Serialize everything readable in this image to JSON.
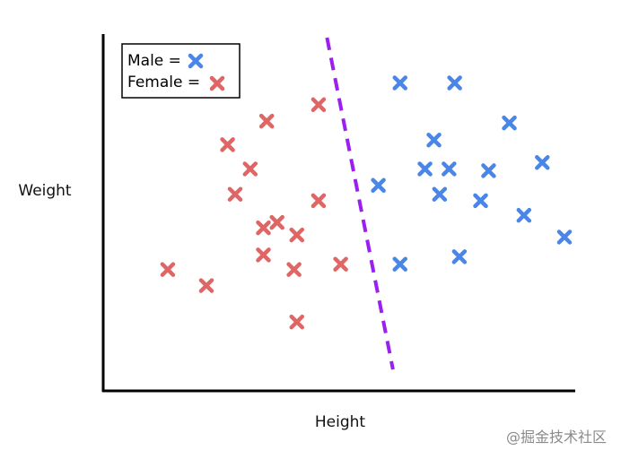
{
  "chart_data": {
    "type": "scatter",
    "xlabel": "Height",
    "ylabel": "Weight",
    "xlim": [
      0,
      100
    ],
    "ylim": [
      0,
      100
    ],
    "grid": false,
    "legend_position": "top-left",
    "axis_ticks": false,
    "series": [
      {
        "name": "Female",
        "marker": "x",
        "color": "#e06666",
        "points": [
          {
            "x": 13.7,
            "y": 34.0
          },
          {
            "x": 21.9,
            "y": 29.5
          },
          {
            "x": 26.4,
            "y": 69.0
          },
          {
            "x": 28.0,
            "y": 55.1
          },
          {
            "x": 31.2,
            "y": 62.2
          },
          {
            "x": 34.0,
            "y": 38.1
          },
          {
            "x": 34.0,
            "y": 45.7
          },
          {
            "x": 34.7,
            "y": 75.6
          },
          {
            "x": 36.9,
            "y": 47.2
          },
          {
            "x": 40.5,
            "y": 34.0
          },
          {
            "x": 41.1,
            "y": 43.7
          },
          {
            "x": 41.1,
            "y": 19.3
          },
          {
            "x": 45.7,
            "y": 53.3
          },
          {
            "x": 45.7,
            "y": 80.2
          },
          {
            "x": 50.4,
            "y": 35.5
          }
        ]
      },
      {
        "name": "Male",
        "marker": "x",
        "color": "#4a86e8",
        "points": [
          {
            "x": 58.4,
            "y": 57.6
          },
          {
            "x": 63.0,
            "y": 86.3
          },
          {
            "x": 63.0,
            "y": 35.5
          },
          {
            "x": 68.3,
            "y": 62.2
          },
          {
            "x": 70.2,
            "y": 70.3
          },
          {
            "x": 71.4,
            "y": 55.1
          },
          {
            "x": 73.4,
            "y": 62.2
          },
          {
            "x": 74.6,
            "y": 86.3
          },
          {
            "x": 75.6,
            "y": 37.6
          },
          {
            "x": 80.1,
            "y": 53.3
          },
          {
            "x": 81.8,
            "y": 61.7
          },
          {
            "x": 86.2,
            "y": 75.1
          },
          {
            "x": 89.3,
            "y": 49.2
          },
          {
            "x": 93.2,
            "y": 64.0
          },
          {
            "x": 97.9,
            "y": 43.1
          }
        ]
      }
    ],
    "decision_boundary": {
      "style": "dashed",
      "color": "#9b1ff0",
      "from": {
        "x": 47.5,
        "y": 99.0
      },
      "to": {
        "x": 61.5,
        "y": 6.0
      }
    },
    "legend": [
      {
        "label": "Male =",
        "series": "Male"
      },
      {
        "label": "Female =",
        "series": "Female"
      }
    ]
  },
  "watermark": "@掘金技术社区"
}
